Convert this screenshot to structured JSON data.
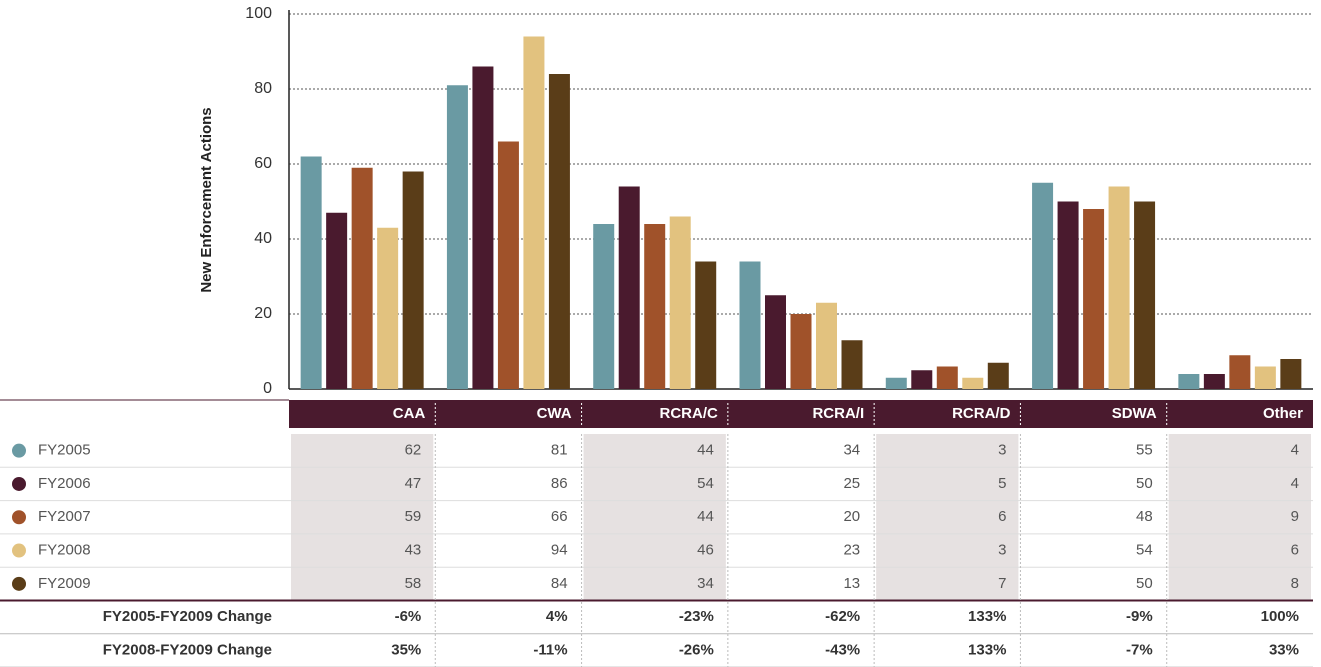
{
  "chart_data": {
    "type": "bar",
    "y_label": "New Enforcement Actions",
    "categories": [
      "CAA",
      "CWA",
      "RCRA/C",
      "RCRA/I",
      "RCRA/D",
      "SDWA",
      "Other"
    ],
    "series": [
      {
        "name": "FY2005",
        "color": "#6a9aa3",
        "values": [
          62,
          81,
          44,
          34,
          3,
          55,
          4
        ]
      },
      {
        "name": "FY2006",
        "color": "#4a1a2e",
        "values": [
          47,
          86,
          54,
          25,
          5,
          50,
          4
        ]
      },
      {
        "name": "FY2007",
        "color": "#a0522a",
        "values": [
          59,
          66,
          44,
          20,
          6,
          48,
          9
        ]
      },
      {
        "name": "FY2008",
        "color": "#e2c27f",
        "values": [
          43,
          94,
          46,
          23,
          3,
          54,
          6
        ]
      },
      {
        "name": "FY2009",
        "color": "#5a3d18",
        "values": [
          58,
          84,
          34,
          13,
          7,
          50,
          8
        ]
      }
    ],
    "changes": [
      {
        "label": "FY2005-FY2009 Change",
        "values": [
          -6,
          4,
          -23,
          -62,
          133,
          -9,
          100
        ],
        "value_labels": [
          "-6%",
          "4%",
          "-23%",
          "-62%",
          "133%",
          "-9%",
          "100%"
        ]
      },
      {
        "label": "FY2008-FY2009 Change",
        "values": [
          35,
          -11,
          -26,
          -43,
          133,
          -7,
          33
        ],
        "value_labels": [
          "35%",
          "-11%",
          "-26%",
          "-43%",
          "133%",
          "-7%",
          "33%"
        ]
      }
    ],
    "ylim": [
      0,
      100
    ],
    "yticks": [
      0,
      20,
      40,
      60,
      80,
      100
    ],
    "grid": true
  }
}
